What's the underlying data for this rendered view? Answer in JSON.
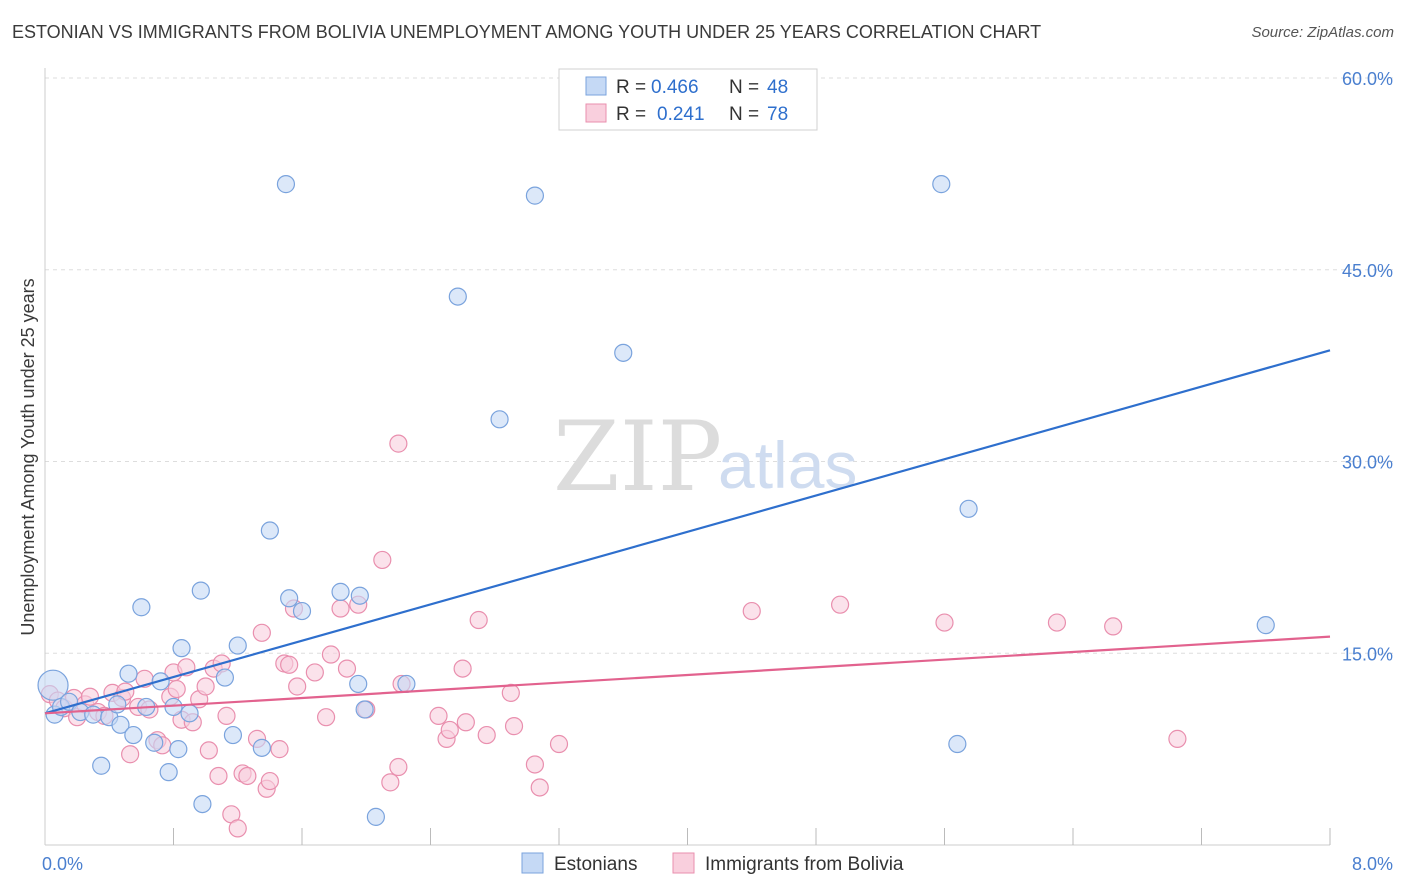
{
  "title": "ESTONIAN VS IMMIGRANTS FROM BOLIVIA UNEMPLOYMENT AMONG YOUTH UNDER 25 YEARS CORRELATION CHART",
  "source": "Source: ZipAtlas.com",
  "watermark": {
    "zip": "ZIP",
    "atlas": "atlas"
  },
  "colors": {
    "blue_fill": "#c5d9f5",
    "blue_stroke": "#7aa3dd",
    "blue_line": "#2e6fcd",
    "pink_fill": "#f9cfdd",
    "pink_stroke": "#e98fae",
    "pink_line": "#e2628e",
    "grid": "#dddddd",
    "axis_text": "#4a7fcf"
  },
  "legend": {
    "rows": [
      {
        "r_label": "R =",
        "r_value": "0.466",
        "n_label": "N =",
        "n_value": "48"
      },
      {
        "r_label": "R =",
        "r_value": "0.241",
        "n_label": "N =",
        "n_value": "78"
      }
    ]
  },
  "chart_data": {
    "type": "scatter",
    "title": "ESTONIAN VS IMMIGRANTS FROM BOLIVIA UNEMPLOYMENT AMONG YOUTH UNDER 25 YEARS CORRELATION CHART",
    "xlabel": "",
    "ylabel": "Unemployment Among Youth under 25 years",
    "xlim": [
      0,
      8
    ],
    "ylim": [
      0,
      60
    ],
    "x_tick_labels": [
      "0.0%",
      "8.0%"
    ],
    "y_ticks": [
      15,
      30,
      45,
      60
    ],
    "y_tick_labels": [
      "15.0%",
      "30.0%",
      "45.0%",
      "60.0%"
    ],
    "grid": true,
    "legend_position": "top-center",
    "series": [
      {
        "name": "Estonians",
        "color_key": "blue",
        "trend": {
          "x0": 0,
          "y0": 10.3,
          "x1": 8,
          "y1": 38.7
        },
        "points": [
          {
            "x": 0.05,
            "y": 12.5,
            "big": true
          },
          {
            "x": 0.06,
            "y": 10.2
          },
          {
            "x": 0.1,
            "y": 10.8
          },
          {
            "x": 0.15,
            "y": 11.2
          },
          {
            "x": 0.22,
            "y": 10.4
          },
          {
            "x": 0.3,
            "y": 10.2
          },
          {
            "x": 0.35,
            "y": 6.2
          },
          {
            "x": 0.4,
            "y": 10.0
          },
          {
            "x": 0.45,
            "y": 11.0
          },
          {
            "x": 0.47,
            "y": 9.4
          },
          {
            "x": 0.52,
            "y": 13.4
          },
          {
            "x": 0.55,
            "y": 8.6
          },
          {
            "x": 0.6,
            "y": 18.6
          },
          {
            "x": 0.63,
            "y": 10.8
          },
          {
            "x": 0.68,
            "y": 8.0
          },
          {
            "x": 0.72,
            "y": 12.8
          },
          {
            "x": 0.77,
            "y": 5.7
          },
          {
            "x": 0.8,
            "y": 10.8
          },
          {
            "x": 0.83,
            "y": 7.5
          },
          {
            "x": 0.85,
            "y": 15.4
          },
          {
            "x": 0.9,
            "y": 10.3
          },
          {
            "x": 0.97,
            "y": 19.9
          },
          {
            "x": 0.98,
            "y": 3.2
          },
          {
            "x": 1.12,
            "y": 13.1
          },
          {
            "x": 1.17,
            "y": 8.6
          },
          {
            "x": 1.2,
            "y": 15.6
          },
          {
            "x": 1.35,
            "y": 7.6
          },
          {
            "x": 1.4,
            "y": 24.6
          },
          {
            "x": 1.5,
            "y": 51.7
          },
          {
            "x": 1.52,
            "y": 19.3
          },
          {
            "x": 1.6,
            "y": 18.3
          },
          {
            "x": 1.84,
            "y": 19.8
          },
          {
            "x": 1.95,
            "y": 12.6
          },
          {
            "x": 1.96,
            "y": 19.5
          },
          {
            "x": 1.99,
            "y": 10.6
          },
          {
            "x": 2.06,
            "y": 2.2
          },
          {
            "x": 2.25,
            "y": 12.6
          },
          {
            "x": 2.57,
            "y": 42.9
          },
          {
            "x": 2.83,
            "y": 33.3
          },
          {
            "x": 3.05,
            "y": 50.8
          },
          {
            "x": 3.6,
            "y": 38.5
          },
          {
            "x": 5.58,
            "y": 51.7
          },
          {
            "x": 5.68,
            "y": 7.9
          },
          {
            "x": 5.75,
            "y": 26.3
          },
          {
            "x": 7.6,
            "y": 17.2
          }
        ]
      },
      {
        "name": "Immigrants from Bolivia",
        "color_key": "pink",
        "trend": {
          "x0": 0,
          "y0": 10.3,
          "x1": 8,
          "y1": 16.3
        },
        "points": [
          {
            "x": 0.03,
            "y": 11.8
          },
          {
            "x": 0.08,
            "y": 11.3
          },
          {
            "x": 0.12,
            "y": 10.7
          },
          {
            "x": 0.18,
            "y": 11.5
          },
          {
            "x": 0.2,
            "y": 10.0
          },
          {
            "x": 0.25,
            "y": 11.0
          },
          {
            "x": 0.28,
            "y": 11.6
          },
          {
            "x": 0.33,
            "y": 10.4
          },
          {
            "x": 0.37,
            "y": 10.1
          },
          {
            "x": 0.42,
            "y": 11.9
          },
          {
            "x": 0.48,
            "y": 11.5
          },
          {
            "x": 0.5,
            "y": 12.0
          },
          {
            "x": 0.53,
            "y": 7.1
          },
          {
            "x": 0.58,
            "y": 10.8
          },
          {
            "x": 0.62,
            "y": 13.0
          },
          {
            "x": 0.65,
            "y": 10.6
          },
          {
            "x": 0.7,
            "y": 8.2
          },
          {
            "x": 0.73,
            "y": 7.8
          },
          {
            "x": 0.78,
            "y": 11.6
          },
          {
            "x": 0.8,
            "y": 13.5
          },
          {
            "x": 0.82,
            "y": 12.2
          },
          {
            "x": 0.85,
            "y": 9.8
          },
          {
            "x": 0.88,
            "y": 13.9
          },
          {
            "x": 0.92,
            "y": 9.6
          },
          {
            "x": 0.96,
            "y": 11.4
          },
          {
            "x": 1.0,
            "y": 12.4
          },
          {
            "x": 1.02,
            "y": 7.4
          },
          {
            "x": 1.05,
            "y": 13.8
          },
          {
            "x": 1.08,
            "y": 5.4
          },
          {
            "x": 1.1,
            "y": 14.2
          },
          {
            "x": 1.13,
            "y": 10.1
          },
          {
            "x": 1.16,
            "y": 2.4
          },
          {
            "x": 1.2,
            "y": 1.3
          },
          {
            "x": 1.23,
            "y": 5.6
          },
          {
            "x": 1.26,
            "y": 5.4
          },
          {
            "x": 1.32,
            "y": 8.3
          },
          {
            "x": 1.35,
            "y": 16.6
          },
          {
            "x": 1.38,
            "y": 4.4
          },
          {
            "x": 1.4,
            "y": 5.0
          },
          {
            "x": 1.46,
            "y": 7.5
          },
          {
            "x": 1.49,
            "y": 14.2
          },
          {
            "x": 1.52,
            "y": 14.1
          },
          {
            "x": 1.55,
            "y": 18.5
          },
          {
            "x": 1.57,
            "y": 12.4
          },
          {
            "x": 1.68,
            "y": 13.5
          },
          {
            "x": 1.75,
            "y": 10.0
          },
          {
            "x": 1.78,
            "y": 14.9
          },
          {
            "x": 1.84,
            "y": 18.5
          },
          {
            "x": 1.88,
            "y": 13.8
          },
          {
            "x": 1.95,
            "y": 18.8
          },
          {
            "x": 2.0,
            "y": 10.6
          },
          {
            "x": 2.1,
            "y": 22.3
          },
          {
            "x": 2.15,
            "y": 4.9
          },
          {
            "x": 2.2,
            "y": 6.1
          },
          {
            "x": 2.2,
            "y": 31.4
          },
          {
            "x": 2.22,
            "y": 12.6
          },
          {
            "x": 2.45,
            "y": 10.1
          },
          {
            "x": 2.5,
            "y": 8.3
          },
          {
            "x": 2.52,
            "y": 9.0
          },
          {
            "x": 2.6,
            "y": 13.8
          },
          {
            "x": 2.62,
            "y": 9.6
          },
          {
            "x": 2.7,
            "y": 17.6
          },
          {
            "x": 2.75,
            "y": 8.6
          },
          {
            "x": 2.9,
            "y": 11.9
          },
          {
            "x": 2.92,
            "y": 9.3
          },
          {
            "x": 3.05,
            "y": 6.3
          },
          {
            "x": 3.08,
            "y": 4.5
          },
          {
            "x": 3.2,
            "y": 7.9
          },
          {
            "x": 4.4,
            "y": 18.3
          },
          {
            "x": 4.95,
            "y": 18.8
          },
          {
            "x": 5.6,
            "y": 17.4
          },
          {
            "x": 6.3,
            "y": 17.4
          },
          {
            "x": 6.65,
            "y": 17.1
          },
          {
            "x": 7.05,
            "y": 8.3
          }
        ]
      }
    ]
  }
}
